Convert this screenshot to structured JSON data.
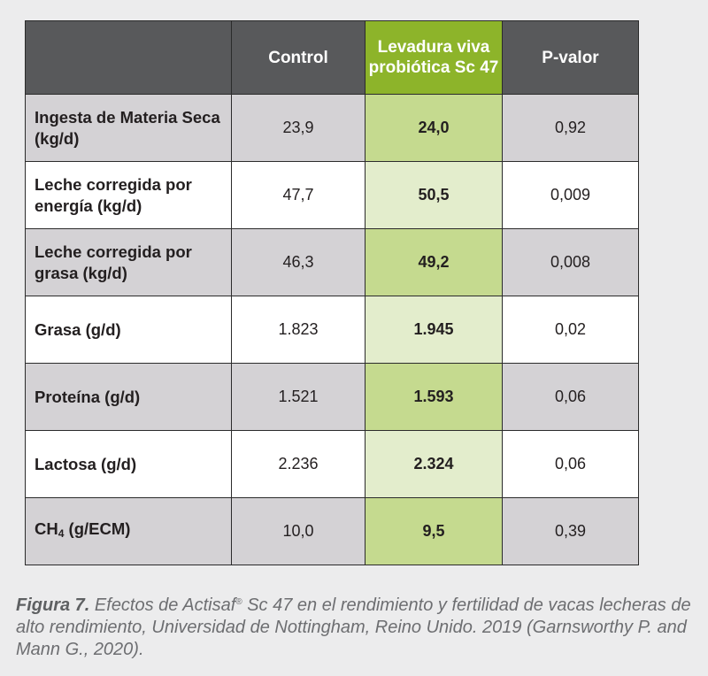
{
  "table": {
    "headers": [
      "",
      "Control",
      "Levadura viva probiótica Sc 47",
      "P-valor"
    ],
    "rows": [
      {
        "label": "Ingesta de Materia Seca (kg/d)",
        "control": "23,9",
        "levadura": "24,0",
        "p": "0,92"
      },
      {
        "label": "Leche corregida por energía (kg/d)",
        "control": "47,7",
        "levadura": "50,5",
        "p": "0,009"
      },
      {
        "label": "Leche corregida por grasa (kg/d)",
        "control": "46,3",
        "levadura": "49,2",
        "p": "0,008"
      },
      {
        "label": "Grasa (g/d)",
        "control": "1.823",
        "levadura": "1.945",
        "p": "0,02"
      },
      {
        "label": "Proteína (g/d)",
        "control": "1.521",
        "levadura": "1.593",
        "p": "0,06"
      },
      {
        "label": "Lactosa (g/d)",
        "control": "2.236",
        "levadura": "2.324",
        "p": "0,06"
      },
      {
        "label_main": "CH",
        "label_sub": "4",
        "label_rest": " (g/ECM)",
        "control": "10,0",
        "levadura": "9,5",
        "p": "0,39"
      }
    ]
  },
  "caption": {
    "figure": "Figura 7.",
    "text_before_mark": " Efectos de Actisaf",
    "mark": "®",
    "text_after_mark": " Sc 47 en el rendimiento y fertilidad de vacas lecheras de alto rendimiento, Universidad de Nottingham, Reino Unido. 2019 (Garnsworthy P. and Mann G., 2020)."
  },
  "colors": {
    "header_bg": "#58595b",
    "highlight_header": "#8db42a",
    "row_gray": "#d4d2d5",
    "row_white": "#ffffff",
    "highlight_gray": "#c5da8f",
    "highlight_light": "#e3edcc",
    "caption_text": "#6d6e71"
  }
}
